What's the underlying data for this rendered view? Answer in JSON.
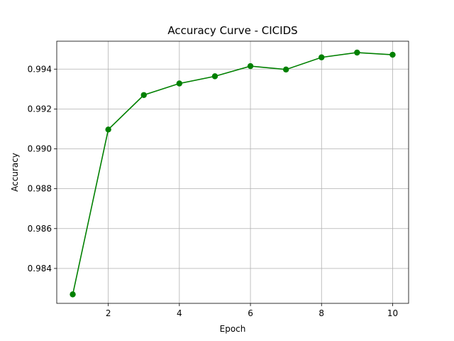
{
  "chart_data": {
    "type": "line",
    "title": "Accuracy Curve - CICIDS",
    "xlabel": "Epoch",
    "ylabel": "Accuracy",
    "x": [
      1,
      2,
      3,
      4,
      5,
      6,
      7,
      8,
      9,
      10
    ],
    "series": [
      {
        "values": [
          0.9827,
          0.99097,
          0.9927,
          0.99328,
          0.99364,
          0.99415,
          0.99398,
          0.99459,
          0.99483,
          0.99472
        ],
        "color": "#008000",
        "marker": "circle"
      }
    ],
    "xlim": [
      0.55,
      10.45
    ],
    "ylim": [
      0.98225,
      0.9954
    ],
    "xticks": [
      2,
      4,
      6,
      8,
      10
    ],
    "xtick_labels": [
      "2",
      "4",
      "6",
      "8",
      "10"
    ],
    "yticks": [
      0.984,
      0.986,
      0.988,
      0.99,
      0.992,
      0.994
    ],
    "ytick_labels": [
      "0.984",
      "0.986",
      "0.988",
      "0.990",
      "0.992",
      "0.994"
    ],
    "grid": true,
    "legend": "none"
  }
}
